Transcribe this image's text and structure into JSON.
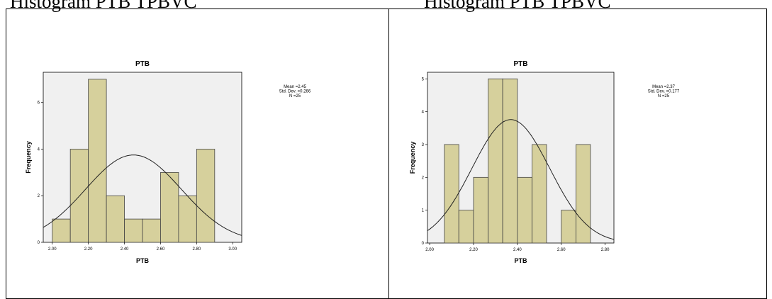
{
  "captions": {
    "left": "Histogram PTB TPBVC",
    "right": "Histogram PTB TPBVC"
  },
  "colors": {
    "bar_fill": "#d6d09c",
    "bar_stroke": "#444444",
    "plot_bg": "#f0f0f0",
    "curve": "#222222"
  },
  "chart_data": [
    {
      "type": "bar",
      "title": "PTB",
      "xlabel": "PTB",
      "ylabel": "Frequency",
      "bin_width": 0.1,
      "bins": [
        {
          "start": 2.0,
          "end": 2.1,
          "count": 1
        },
        {
          "start": 2.1,
          "end": 2.2,
          "count": 4
        },
        {
          "start": 2.2,
          "end": 2.3,
          "count": 7
        },
        {
          "start": 2.3,
          "end": 2.4,
          "count": 2
        },
        {
          "start": 2.4,
          "end": 2.5,
          "count": 1
        },
        {
          "start": 2.5,
          "end": 2.6,
          "count": 1
        },
        {
          "start": 2.6,
          "end": 2.7,
          "count": 3
        },
        {
          "start": 2.7,
          "end": 2.8,
          "count": 2
        },
        {
          "start": 2.8,
          "end": 2.9,
          "count": 4
        }
      ],
      "xlim": [
        1.95,
        3.05
      ],
      "ylim": [
        0,
        7.3
      ],
      "xticks": [
        "2.00",
        "2.20",
        "2.40",
        "2.60",
        "2.80",
        "3.00"
      ],
      "xtick_values": [
        2.0,
        2.2,
        2.4,
        2.6,
        2.8,
        3.0
      ],
      "yticks": [
        "0",
        "2",
        "4",
        "6"
      ],
      "ytick_values": [
        0,
        2,
        4,
        6
      ],
      "stats": {
        "mean": 2.45,
        "std": 0.266,
        "n": 25
      },
      "stats_text": [
        "Mean =2.45",
        "Std. Dev. =0.266",
        "N =25"
      ],
      "normal_curve": true,
      "grid": false,
      "legend": "none"
    },
    {
      "type": "bar",
      "title": "PTB",
      "xlabel": "PTB",
      "ylabel": "Frequency",
      "bin_width": 0.0667,
      "bins": [
        {
          "start": 2.067,
          "end": 2.133,
          "count": 3
        },
        {
          "start": 2.133,
          "end": 2.2,
          "count": 1
        },
        {
          "start": 2.2,
          "end": 2.267,
          "count": 2
        },
        {
          "start": 2.267,
          "end": 2.333,
          "count": 5
        },
        {
          "start": 2.333,
          "end": 2.4,
          "count": 5
        },
        {
          "start": 2.4,
          "end": 2.467,
          "count": 2
        },
        {
          "start": 2.467,
          "end": 2.533,
          "count": 3
        },
        {
          "start": 2.533,
          "end": 2.6,
          "count": 0
        },
        {
          "start": 2.6,
          "end": 2.667,
          "count": 1
        },
        {
          "start": 2.667,
          "end": 2.733,
          "count": 3
        }
      ],
      "xlim": [
        1.99,
        2.84
      ],
      "ylim": [
        0,
        5.2
      ],
      "xticks": [
        "2.00",
        "2.20",
        "2.40",
        "2.60",
        "2.80"
      ],
      "xtick_values": [
        2.0,
        2.2,
        2.4,
        2.6,
        2.8
      ],
      "yticks": [
        "0",
        "1",
        "2",
        "3",
        "4",
        "5"
      ],
      "ytick_values": [
        0,
        1,
        2,
        3,
        4,
        5
      ],
      "stats": {
        "mean": 2.37,
        "std": 0.177,
        "n": 25
      },
      "stats_text": [
        "Mean =2.37",
        "Std. Dev. =0.177",
        "N =25"
      ],
      "normal_curve": true,
      "grid": false,
      "legend": "none"
    }
  ]
}
